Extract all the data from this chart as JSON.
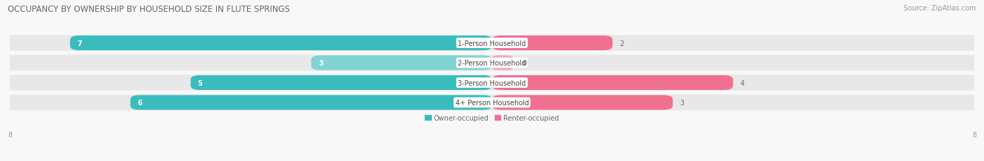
{
  "title": "OCCUPANCY BY OWNERSHIP BY HOUSEHOLD SIZE IN FLUTE SPRINGS",
  "source": "Source: ZipAtlas.com",
  "categories": [
    "1-Person Household",
    "2-Person Household",
    "3-Person Household",
    "4+ Person Household"
  ],
  "owner_values": [
    7,
    3,
    5,
    6
  ],
  "renter_values": [
    2,
    0,
    4,
    3
  ],
  "owner_color_full": "#3BBCBC",
  "owner_color_light": "#80D4D4",
  "renter_color_full": "#F07090",
  "renter_color_light": "#F0A8C0",
  "row_bg_color": "#E8E8E8",
  "label_bg_color": "#FFFFFF",
  "axis_max": 8,
  "legend_owner": "Owner-occupied",
  "legend_renter": "Renter-occupied",
  "title_fontsize": 8.5,
  "source_fontsize": 7,
  "bar_label_fontsize": 7,
  "value_fontsize": 7,
  "axis_label_fontsize": 7,
  "background_color": "#F8F8F8"
}
